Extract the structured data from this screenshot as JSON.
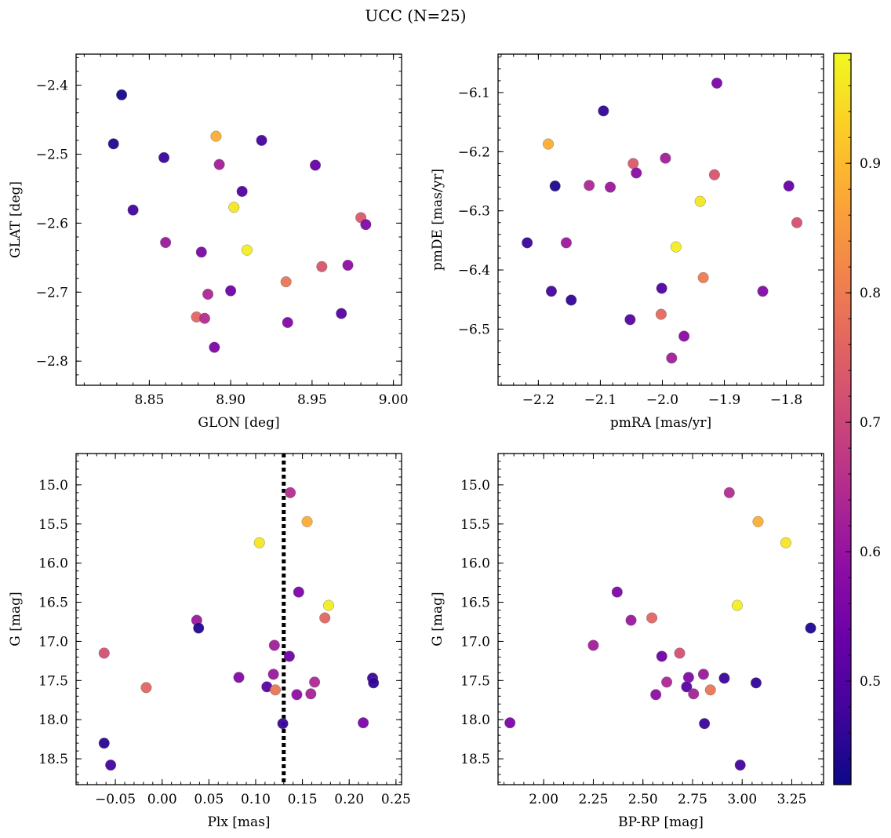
{
  "figure": {
    "suptitle": "UCC (N=25)"
  },
  "colorbar": {
    "range": [
      0.42,
      0.985
    ],
    "ticks": [
      0.5,
      0.6,
      0.7,
      0.8,
      0.9
    ],
    "tick_labels": [
      "0.5",
      "0.6",
      "0.7",
      "0.8",
      "0.9"
    ],
    "colormap": "plasma"
  },
  "chart_data": [
    {
      "type": "scatter",
      "id": "glon-glat",
      "title": "",
      "xlabel": "GLON [deg]",
      "ylabel": "GLAT [deg]",
      "xlim": [
        8.805,
        9.005
      ],
      "ylim": [
        -2.835,
        -2.355
      ],
      "y_inverted": false,
      "xticks": [
        8.85,
        8.9,
        8.95,
        9.0
      ],
      "xtick_labels": [
        "8.85",
        "8.90",
        "8.95",
        "9.00"
      ],
      "xminor_step": 0.01,
      "yticks": [
        -2.8,
        -2.7,
        -2.6,
        -2.5,
        -2.4
      ],
      "ytick_labels": [
        "−2.8",
        "−2.7",
        "−2.6",
        "−2.5",
        "−2.4"
      ],
      "yminor_step": 0.02,
      "points": [
        {
          "x": 8.833,
          "y": -2.414,
          "c": 0.43
        },
        {
          "x": 8.828,
          "y": -2.485,
          "c": 0.44
        },
        {
          "x": 8.859,
          "y": -2.505,
          "c": 0.47
        },
        {
          "x": 8.891,
          "y": -2.474,
          "c": 0.88
        },
        {
          "x": 8.919,
          "y": -2.48,
          "c": 0.48
        },
        {
          "x": 8.893,
          "y": -2.515,
          "c": 0.62
        },
        {
          "x": 8.952,
          "y": -2.516,
          "c": 0.53
        },
        {
          "x": 8.907,
          "y": -2.554,
          "c": 0.5
        },
        {
          "x": 8.84,
          "y": -2.581,
          "c": 0.48
        },
        {
          "x": 8.902,
          "y": -2.577,
          "c": 0.96
        },
        {
          "x": 8.98,
          "y": -2.592,
          "c": 0.74
        },
        {
          "x": 8.983,
          "y": -2.602,
          "c": 0.57
        },
        {
          "x": 8.86,
          "y": -2.628,
          "c": 0.61
        },
        {
          "x": 8.91,
          "y": -2.639,
          "c": 0.97
        },
        {
          "x": 8.882,
          "y": -2.642,
          "c": 0.56
        },
        {
          "x": 8.956,
          "y": -2.663,
          "c": 0.73
        },
        {
          "x": 8.972,
          "y": -2.661,
          "c": 0.59
        },
        {
          "x": 8.934,
          "y": -2.685,
          "c": 0.79
        },
        {
          "x": 8.9,
          "y": -2.698,
          "c": 0.54
        },
        {
          "x": 8.886,
          "y": -2.703,
          "c": 0.64
        },
        {
          "x": 8.879,
          "y": -2.736,
          "c": 0.76
        },
        {
          "x": 8.884,
          "y": -2.738,
          "c": 0.65
        },
        {
          "x": 8.968,
          "y": -2.731,
          "c": 0.51
        },
        {
          "x": 8.935,
          "y": -2.744,
          "c": 0.57
        },
        {
          "x": 8.89,
          "y": -2.78,
          "c": 0.56
        }
      ]
    },
    {
      "type": "scatter",
      "id": "pm",
      "title": "",
      "xlabel": "pmRA [mas/yr]",
      "ylabel": "pmDE [mas/yr]",
      "xlim": [
        -2.265,
        -1.74
      ],
      "ylim": [
        -6.595,
        -6.035
      ],
      "y_inverted": false,
      "xticks": [
        -2.2,
        -2.1,
        -2.0,
        -1.9,
        -1.8
      ],
      "xtick_labels": [
        "−2.2",
        "−2.1",
        "−2.0",
        "−1.9",
        "−1.8"
      ],
      "xminor_step": 0.02,
      "yticks": [
        -6.5,
        -6.4,
        -6.3,
        -6.2,
        -6.1
      ],
      "ytick_labels": [
        "−6.5",
        "−6.4",
        "−6.3",
        "−6.2",
        "−6.1"
      ],
      "yminor_step": 0.02,
      "points": [
        {
          "x": -1.912,
          "y": -6.084,
          "c": 0.56
        },
        {
          "x": -2.095,
          "y": -6.131,
          "c": 0.46
        },
        {
          "x": -2.184,
          "y": -6.187,
          "c": 0.88
        },
        {
          "x": -2.173,
          "y": -6.258,
          "c": 0.44
        },
        {
          "x": -2.118,
          "y": -6.257,
          "c": 0.64
        },
        {
          "x": -2.084,
          "y": -6.26,
          "c": 0.61
        },
        {
          "x": -2.047,
          "y": -6.22,
          "c": 0.74
        },
        {
          "x": -2.042,
          "y": -6.236,
          "c": 0.58
        },
        {
          "x": -1.995,
          "y": -6.211,
          "c": 0.62
        },
        {
          "x": -1.916,
          "y": -6.239,
          "c": 0.73
        },
        {
          "x": -1.796,
          "y": -6.258,
          "c": 0.53
        },
        {
          "x": -1.939,
          "y": -6.284,
          "c": 0.96
        },
        {
          "x": -1.783,
          "y": -6.32,
          "c": 0.72
        },
        {
          "x": -2.218,
          "y": -6.354,
          "c": 0.47
        },
        {
          "x": -2.155,
          "y": -6.354,
          "c": 0.61
        },
        {
          "x": -1.978,
          "y": -6.361,
          "c": 0.97
        },
        {
          "x": -1.934,
          "y": -6.413,
          "c": 0.8
        },
        {
          "x": -2.001,
          "y": -6.431,
          "c": 0.5
        },
        {
          "x": -2.179,
          "y": -6.436,
          "c": 0.48
        },
        {
          "x": -1.838,
          "y": -6.436,
          "c": 0.57
        },
        {
          "x": -2.147,
          "y": -6.451,
          "c": 0.46
        },
        {
          "x": -2.052,
          "y": -6.484,
          "c": 0.51
        },
        {
          "x": -2.002,
          "y": -6.475,
          "c": 0.77
        },
        {
          "x": -1.965,
          "y": -6.512,
          "c": 0.58
        },
        {
          "x": -1.985,
          "y": -6.549,
          "c": 0.62
        }
      ]
    },
    {
      "type": "scatter",
      "id": "plx-g",
      "title": "",
      "xlabel": "Plx [mas]",
      "ylabel": "G [mag]",
      "xlim": [
        -0.092,
        0.256
      ],
      "ylim": [
        18.83,
        14.6
      ],
      "y_inverted": true,
      "xticks": [
        -0.05,
        0.0,
        0.05,
        0.1,
        0.15,
        0.2,
        0.25
      ],
      "xtick_labels": [
        "−0.05",
        "0.00",
        "0.05",
        "0.10",
        "0.15",
        "0.20",
        "0.25"
      ],
      "xminor_step": 0.01,
      "yticks": [
        15.0,
        15.5,
        16.0,
        16.5,
        17.0,
        17.5,
        18.0,
        18.5
      ],
      "ytick_labels": [
        "15.0",
        "15.5",
        "16.0",
        "16.5",
        "17.0",
        "17.5",
        "18.0",
        "18.5"
      ],
      "yminor_step": 0.1,
      "vline": {
        "x": 0.13,
        "style": "dotted",
        "color": "#000000"
      },
      "points": [
        {
          "x": 0.137,
          "y": 15.1,
          "c": 0.65
        },
        {
          "x": 0.155,
          "y": 15.47,
          "c": 0.88
        },
        {
          "x": 0.104,
          "y": 15.74,
          "c": 0.96
        },
        {
          "x": 0.146,
          "y": 16.37,
          "c": 0.56
        },
        {
          "x": 0.178,
          "y": 16.54,
          "c": 0.97
        },
        {
          "x": 0.174,
          "y": 16.7,
          "c": 0.76
        },
        {
          "x": 0.037,
          "y": 16.73,
          "c": 0.61
        },
        {
          "x": 0.039,
          "y": 16.83,
          "c": 0.44
        },
        {
          "x": -0.062,
          "y": 17.15,
          "c": 0.72
        },
        {
          "x": 0.12,
          "y": 17.05,
          "c": 0.62
        },
        {
          "x": 0.136,
          "y": 17.19,
          "c": 0.54
        },
        {
          "x": 0.082,
          "y": 17.46,
          "c": 0.57
        },
        {
          "x": 0.119,
          "y": 17.42,
          "c": 0.61
        },
        {
          "x": 0.163,
          "y": 17.52,
          "c": 0.64
        },
        {
          "x": 0.225,
          "y": 17.47,
          "c": 0.47
        },
        {
          "x": 0.226,
          "y": 17.53,
          "c": 0.46
        },
        {
          "x": 0.112,
          "y": 17.58,
          "c": 0.51
        },
        {
          "x": 0.121,
          "y": 17.62,
          "c": 0.79
        },
        {
          "x": -0.017,
          "y": 17.59,
          "c": 0.76
        },
        {
          "x": 0.144,
          "y": 17.68,
          "c": 0.59
        },
        {
          "x": 0.159,
          "y": 17.67,
          "c": 0.63
        },
        {
          "x": 0.129,
          "y": 18.05,
          "c": 0.47
        },
        {
          "x": 0.215,
          "y": 18.04,
          "c": 0.56
        },
        {
          "x": -0.062,
          "y": 18.3,
          "c": 0.45
        },
        {
          "x": -0.055,
          "y": 18.58,
          "c": 0.48
        }
      ]
    },
    {
      "type": "scatter",
      "id": "cmd",
      "title": "",
      "xlabel": "BP-RP [mag]",
      "ylabel": "G [mag]",
      "xlim": [
        1.77,
        3.41
      ],
      "ylim": [
        18.83,
        14.6
      ],
      "y_inverted": true,
      "xticks": [
        2.0,
        2.25,
        2.5,
        2.75,
        3.0,
        3.25
      ],
      "xtick_labels": [
        "2.00",
        "2.25",
        "2.50",
        "2.75",
        "3.00",
        "3.25"
      ],
      "xminor_step": 0.05,
      "yticks": [
        15.0,
        15.5,
        16.0,
        16.5,
        17.0,
        17.5,
        18.0,
        18.5
      ],
      "ytick_labels": [
        "15.0",
        "15.5",
        "16.0",
        "16.5",
        "17.0",
        "17.5",
        "18.0",
        "18.5"
      ],
      "yminor_step": 0.1,
      "points": [
        {
          "x": 2.935,
          "y": 15.1,
          "c": 0.65
        },
        {
          "x": 3.08,
          "y": 15.47,
          "c": 0.88
        },
        {
          "x": 3.22,
          "y": 15.74,
          "c": 0.96
        },
        {
          "x": 2.37,
          "y": 16.37,
          "c": 0.56
        },
        {
          "x": 2.975,
          "y": 16.54,
          "c": 0.97
        },
        {
          "x": 2.545,
          "y": 16.7,
          "c": 0.76
        },
        {
          "x": 2.44,
          "y": 16.73,
          "c": 0.61
        },
        {
          "x": 3.345,
          "y": 16.83,
          "c": 0.44
        },
        {
          "x": 2.25,
          "y": 17.05,
          "c": 0.62
        },
        {
          "x": 2.685,
          "y": 17.15,
          "c": 0.72
        },
        {
          "x": 2.595,
          "y": 17.19,
          "c": 0.54
        },
        {
          "x": 2.805,
          "y": 17.42,
          "c": 0.61
        },
        {
          "x": 2.73,
          "y": 17.46,
          "c": 0.57
        },
        {
          "x": 2.91,
          "y": 17.47,
          "c": 0.47
        },
        {
          "x": 2.62,
          "y": 17.52,
          "c": 0.64
        },
        {
          "x": 3.07,
          "y": 17.53,
          "c": 0.46
        },
        {
          "x": 2.72,
          "y": 17.58,
          "c": 0.51
        },
        {
          "x": 2.84,
          "y": 17.62,
          "c": 0.79
        },
        {
          "x": 2.755,
          "y": 17.67,
          "c": 0.63
        },
        {
          "x": 2.565,
          "y": 17.68,
          "c": 0.59
        },
        {
          "x": 2.81,
          "y": 18.05,
          "c": 0.47
        },
        {
          "x": 1.83,
          "y": 18.04,
          "c": 0.56
        },
        {
          "x": 2.99,
          "y": 18.58,
          "c": 0.48
        }
      ]
    }
  ]
}
